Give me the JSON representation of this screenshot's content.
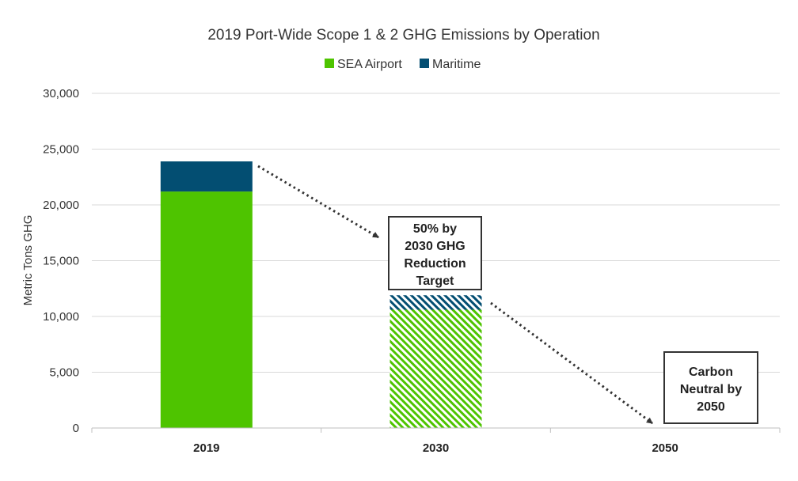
{
  "chart_data": {
    "type": "bar",
    "stacked": true,
    "title": "2019 Port-Wide Scope 1 & 2 GHG Emissions by Operation",
    "ylabel": "Metric Tons GHG",
    "xlabel": "",
    "ylim": [
      0,
      30000
    ],
    "yticks": [
      0,
      5000,
      10000,
      15000,
      20000,
      25000,
      30000
    ],
    "ytick_labels": [
      "0",
      "5,000",
      "10,000",
      "15,000",
      "20,000",
      "25,000",
      "30,000"
    ],
    "categories": [
      "2019",
      "2030",
      "2050"
    ],
    "grid": true,
    "legend_position": "top",
    "series": [
      {
        "name": "SEA Airport",
        "color": "#4ec400",
        "values": [
          21200,
          10600,
          0
        ],
        "patterned": [
          false,
          true,
          false
        ]
      },
      {
        "name": "Maritime",
        "color": "#034e72",
        "values": [
          2700,
          1300,
          0
        ],
        "patterned": [
          false,
          true,
          false
        ]
      }
    ],
    "annotations": [
      {
        "text_lines": [
          "50% by",
          "2030 GHG",
          "Reduction",
          "Target"
        ]
      },
      {
        "text_lines": [
          "Carbon",
          "Neutral by",
          "2050"
        ]
      }
    ]
  }
}
